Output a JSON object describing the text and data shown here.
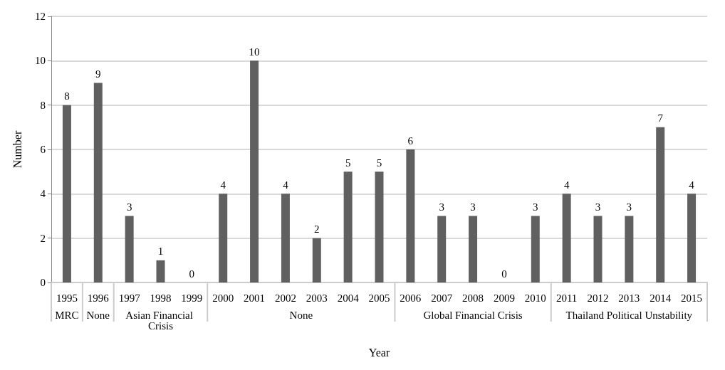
{
  "chart_data": {
    "type": "bar",
    "xlabel": "Year",
    "ylabel": "Number",
    "categories": [
      "1995",
      "1996",
      "1997",
      "1998",
      "1999",
      "2000",
      "2001",
      "2002",
      "2003",
      "2004",
      "2005",
      "2006",
      "2007",
      "2008",
      "2009",
      "2010",
      "2011",
      "2012",
      "2013",
      "2014",
      "2015"
    ],
    "values": [
      8,
      9,
      3,
      1,
      0,
      4,
      10,
      4,
      2,
      5,
      5,
      6,
      3,
      3,
      0,
      3,
      4,
      3,
      3,
      7,
      4
    ],
    "color": "#606060",
    "ylim": [
      0,
      12
    ],
    "yticks": [
      0,
      2,
      4,
      6,
      8,
      10,
      12
    ],
    "grid": "y",
    "data_labels": true,
    "annotations": [
      "MRC",
      "None",
      "Asian Financial Crisis",
      "None",
      "Global Financial Crisis",
      "Thailand Political Unstability"
    ]
  }
}
